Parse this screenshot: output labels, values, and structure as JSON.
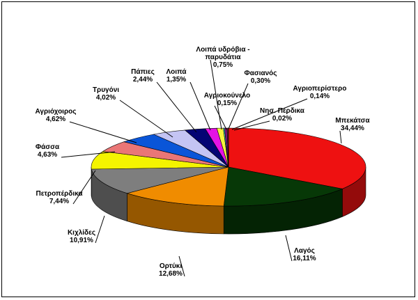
{
  "chart_data": {
    "type": "pie",
    "style": "3d",
    "title": "",
    "slices": [
      {
        "label": "Μπεκάτσα",
        "value_text": "34,44%",
        "value": 34.44,
        "color": "#ee1111"
      },
      {
        "label": "Λαγός",
        "value_text": "16,11%",
        "value": 16.11,
        "color": "#073807"
      },
      {
        "label": "Ορτύκι",
        "value_text": "12,68%",
        "value": 12.68,
        "color": "#f08c00"
      },
      {
        "label": "Κιχλίδες",
        "value_text": "10,91%",
        "value": 10.91,
        "color": "#7e7e7e"
      },
      {
        "label": "Πετροπέρδικα",
        "value_text": "7,44%",
        "value": 7.44,
        "color": "#f4f400"
      },
      {
        "label": "Φάσσα",
        "value_text": "4,63%",
        "value": 4.63,
        "color": "#ea7676"
      },
      {
        "label": "Αγριόχοιρος",
        "value_text": "4,62%",
        "value": 4.62,
        "color": "#0a55d8"
      },
      {
        "label": "Τρυγόνι",
        "value_text": "4,02%",
        "value": 4.02,
        "color": "#c4c4f4"
      },
      {
        "label": "Πάπιες",
        "value_text": "2,44%",
        "value": 2.44,
        "color": "#040474"
      },
      {
        "label": "Λοιπά",
        "value_text": "1,35%",
        "value": 1.35,
        "color": "#e414e4"
      },
      {
        "label": "Λοιπά υδρόβια - παρυδάτια",
        "value_text": "0,75%",
        "value": 0.75,
        "color": "#f4f43c"
      },
      {
        "label": "Αγριοκούνελο",
        "value_text": "0,15%",
        "value": 0.15,
        "color": "#40d8d8"
      },
      {
        "label": "Φασιανός",
        "value_text": "0,30%",
        "value": 0.3,
        "color": "#7a147a"
      },
      {
        "label": "Αγριοπερίστερο",
        "value_text": "0,14%",
        "value": 0.14,
        "color": "#8a2a2a"
      },
      {
        "label": "Νησ. Πέρδικα",
        "value_text": "0,02%",
        "value": 0.02,
        "color": "#3c8ae4"
      }
    ]
  }
}
